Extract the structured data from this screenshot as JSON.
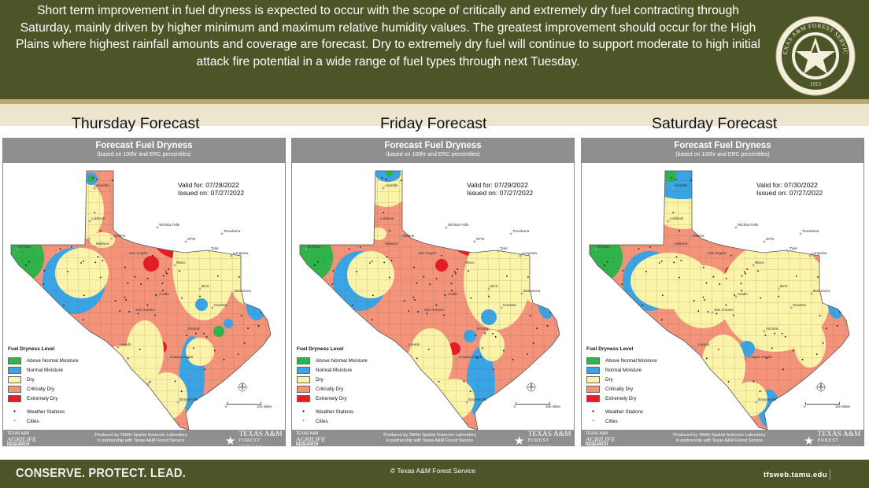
{
  "header": {
    "text": "Short term improvement in fuel dryness is expected to occur with the scope of critically and extremely dry fuel contracting through Saturday, mainly driven by higher minimum and maximum relative humidity values. The greatest improvement should occur for the High Plains where highest rainfall amounts and coverage are forecast. Dry to extremely dry fuel will continue to support moderate to high initial attack fire potential in a wide range of fuel types through next Tuesday."
  },
  "seal": {
    "name": "TEXAS A&M FOREST SERVICE",
    "year": "1915",
    "icon": "star-seal-icon"
  },
  "panels": [
    {
      "title": "Thursday Forecast",
      "heading": "Forecast Fuel Dryness",
      "subheading": "(based on 100hr and ERC percentiles)",
      "valid_label": "Valid for:",
      "valid_date": "07/28/2022",
      "issued_label": "Issued on:",
      "issued_date": "07/27/2022"
    },
    {
      "title": "Friday Forecast",
      "heading": "Forecast Fuel Dryness",
      "subheading": "(based on 100hr and ERC percentiles)",
      "valid_label": "Valid for:",
      "valid_date": "07/29/2022",
      "issued_label": "Issued on:",
      "issued_date": "07/27/2022"
    },
    {
      "title": "Saturday Forecast",
      "heading": "Forecast Fuel Dryness",
      "subheading": "(based on 100hr and ERC percentiles)",
      "valid_label": "Valid for:",
      "valid_date": "07/30/2022",
      "issued_label": "Issued on:",
      "issued_date": "07/27/2022"
    }
  ],
  "map": {
    "cities": [
      "El Paso",
      "Amarillo",
      "Lubbock",
      "Midland",
      "Abilene",
      "San Angelo",
      "Wichita Falls",
      "DFW",
      "Texarkana",
      "Waco",
      "Tyler",
      "Longview",
      "Austin",
      "San Antonio",
      "BCS",
      "Houston",
      "Beaumont",
      "Victoria",
      "Laredo",
      "Corpus Christi",
      "Brownsville"
    ],
    "colors": {
      "above_normal": "#2fb44a",
      "normal": "#3aa4e4",
      "dry": "#fbf3a8",
      "critically_dry": "#f2937a",
      "extremely_dry": "#e61b23"
    }
  },
  "legend": {
    "title": "Fuel Dryness Level",
    "items": [
      "Above Normal Moisture",
      "Normal Moisture",
      "Dry",
      "Critically Dry",
      "Extremely Dry"
    ],
    "stations": "Weather Stations",
    "cities": "Cities"
  },
  "scale": {
    "start": "0",
    "end": "100 Miles"
  },
  "panel_footer": {
    "agrilife_top": "TEXAS A&M",
    "agrilife_mid": "AGRILIFE",
    "agrilife_bottom": "RESEARCH",
    "produced_line1": "Produced by TAMU Spatial Sciences Laboratory",
    "produced_line2": "in partnership with Texas A&M Forest Service",
    "tafs_line1": "TEXAS A&M",
    "tafs_line2": "FOREST SERVICE"
  },
  "footer": {
    "slogan": "CONSERVE. PROTECT. LEAD.",
    "copyright": "© Texas A&M Forest Service",
    "website": "tfsweb.tamu.edu"
  }
}
